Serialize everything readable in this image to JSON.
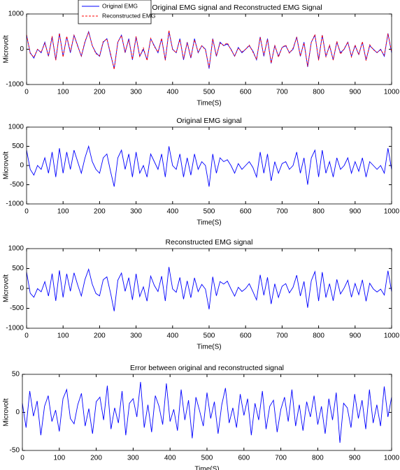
{
  "chart_data": [
    {
      "type": "line",
      "title": "Original EMG signal and Reconstructed EMG Signal",
      "xlabel": "Time(S)",
      "ylabel": "Microvolt",
      "x": [
        0,
        10,
        20,
        30,
        40,
        50,
        60,
        70,
        80,
        90,
        100,
        110,
        120,
        130,
        140,
        150,
        160,
        170,
        180,
        190,
        200,
        210,
        220,
        230,
        240,
        250,
        260,
        270,
        280,
        290,
        300,
        310,
        320,
        330,
        340,
        350,
        360,
        370,
        380,
        390,
        400,
        410,
        420,
        430,
        440,
        450,
        460,
        470,
        480,
        490,
        500,
        510,
        520,
        530,
        540,
        550,
        560,
        570,
        580,
        590,
        600,
        610,
        620,
        630,
        640,
        650,
        660,
        670,
        680,
        690,
        700,
        710,
        720,
        730,
        740,
        750,
        760,
        770,
        780,
        790,
        800,
        810,
        820,
        830,
        840,
        850,
        860,
        870,
        880,
        890,
        900,
        910,
        920,
        930,
        940,
        950,
        960,
        970,
        980,
        990,
        1000
      ],
      "series": [
        {
          "name": "Original EMG",
          "color": "#0000ff",
          "dash": false,
          "values": [
            400,
            -100,
            -250,
            0,
            -100,
            200,
            -200,
            350,
            -300,
            450,
            -200,
            350,
            -100,
            400,
            100,
            -200,
            200,
            500,
            100,
            -100,
            -200,
            200,
            300,
            -150,
            -550,
            200,
            400,
            -100,
            300,
            -300,
            350,
            -200,
            0,
            -300,
            300,
            100,
            -100,
            300,
            -300,
            500,
            0,
            -100,
            300,
            -300,
            200,
            -250,
            300,
            -100,
            100,
            0,
            -550,
            300,
            -200,
            200,
            100,
            150,
            0,
            -200,
            50,
            -100,
            0,
            100,
            -50,
            -300,
            350,
            -200,
            300,
            -400,
            100,
            -200,
            50,
            100,
            -100,
            0,
            350,
            -200,
            200,
            -500,
            200,
            400,
            -300,
            400,
            -200,
            100,
            -300,
            200,
            -100,
            0,
            200,
            -200,
            100,
            -150,
            200,
            -300,
            100,
            0,
            -100,
            0,
            -200,
            450,
            -100
          ]
        },
        {
          "name": "Reconstructed EMG",
          "color": "#ff0000",
          "dash": true,
          "values": [
            412,
            -120,
            -222,
            -5,
            -85,
            170,
            -192,
            372,
            -312,
            453,
            -225,
            368,
            -70,
            392,
            85,
            -190,
            225,
            482,
            105,
            -128,
            -186,
            220,
            290,
            -115,
            -572,
            206,
            386,
            -72,
            270,
            -288,
            368,
            -206,
            40,
            -320,
            310,
            74,
            -78,
            308,
            -316,
            538,
            -12,
            -96,
            276,
            -270,
            190,
            -234,
            266,
            -80,
            102,
            -18,
            -524,
            292,
            -186,
            172,
            110,
            182,
            -14,
            -194,
            30,
            -76,
            -4,
            118,
            -80,
            -288,
            340,
            -172,
            278,
            -392,
            116,
            -226,
            54,
            120,
            -112,
            30,
            332,
            -190,
            176,
            -486,
            194,
            422,
            -316,
            408,
            -228,
            118,
            -310,
            226,
            -140,
            12,
            206,
            -220,
            124,
            -158,
            216,
            -322,
            130,
            -14,
            -90,
            -18,
            -166,
            444,
            -80
          ]
        }
      ],
      "xlim": [
        0,
        1000
      ],
      "ylim": [
        -1000,
        1000
      ],
      "xticks": [
        0,
        100,
        200,
        300,
        400,
        500,
        600,
        700,
        800,
        900,
        1000
      ],
      "yticks": [
        -1000,
        0,
        1000
      ],
      "legend": "upper left"
    },
    {
      "type": "line",
      "title": "Original EMG signal",
      "xlabel": "Time(S)",
      "ylabel": "Microvolt",
      "x": [
        0,
        10,
        20,
        30,
        40,
        50,
        60,
        70,
        80,
        90,
        100,
        110,
        120,
        130,
        140,
        150,
        160,
        170,
        180,
        190,
        200,
        210,
        220,
        230,
        240,
        250,
        260,
        270,
        280,
        290,
        300,
        310,
        320,
        330,
        340,
        350,
        360,
        370,
        380,
        390,
        400,
        410,
        420,
        430,
        440,
        450,
        460,
        470,
        480,
        490,
        500,
        510,
        520,
        530,
        540,
        550,
        560,
        570,
        580,
        590,
        600,
        610,
        620,
        630,
        640,
        650,
        660,
        670,
        680,
        690,
        700,
        710,
        720,
        730,
        740,
        750,
        760,
        770,
        780,
        790,
        800,
        810,
        820,
        830,
        840,
        850,
        860,
        870,
        880,
        890,
        900,
        910,
        920,
        930,
        940,
        950,
        960,
        970,
        980,
        990,
        1000
      ],
      "series": [
        {
          "color": "#0000ff",
          "dash": false,
          "values": [
            400,
            -100,
            -250,
            0,
            -100,
            200,
            -200,
            350,
            -300,
            450,
            -200,
            350,
            -100,
            400,
            100,
            -200,
            200,
            500,
            100,
            -100,
            -200,
            200,
            300,
            -150,
            -550,
            200,
            400,
            -100,
            300,
            -300,
            350,
            -200,
            0,
            -300,
            300,
            100,
            -100,
            300,
            -300,
            500,
            0,
            -100,
            300,
            -300,
            200,
            -250,
            300,
            -100,
            100,
            0,
            -550,
            300,
            -200,
            200,
            100,
            150,
            0,
            -200,
            50,
            -100,
            0,
            100,
            -50,
            -300,
            350,
            -200,
            300,
            -400,
            100,
            -200,
            50,
            100,
            -100,
            0,
            350,
            -200,
            200,
            -500,
            200,
            400,
            -300,
            400,
            -200,
            100,
            -300,
            200,
            -100,
            0,
            200,
            -200,
            100,
            -150,
            200,
            -300,
            100,
            0,
            -100,
            0,
            -200,
            450,
            -100
          ]
        }
      ],
      "xlim": [
        0,
        1000
      ],
      "ylim": [
        -1000,
        1000
      ],
      "xticks": [
        0,
        100,
        200,
        300,
        400,
        500,
        600,
        700,
        800,
        900,
        1000
      ],
      "yticks": [
        -1000,
        -500,
        0,
        500,
        1000
      ]
    },
    {
      "type": "line",
      "title": "Reconstructed EMG signal",
      "xlabel": "Time(S)",
      "ylabel": "Microvolt",
      "x": [
        0,
        10,
        20,
        30,
        40,
        50,
        60,
        70,
        80,
        90,
        100,
        110,
        120,
        130,
        140,
        150,
        160,
        170,
        180,
        190,
        200,
        210,
        220,
        230,
        240,
        250,
        260,
        270,
        280,
        290,
        300,
        310,
        320,
        330,
        340,
        350,
        360,
        370,
        380,
        390,
        400,
        410,
        420,
        430,
        440,
        450,
        460,
        470,
        480,
        490,
        500,
        510,
        520,
        530,
        540,
        550,
        560,
        570,
        580,
        590,
        600,
        610,
        620,
        630,
        640,
        650,
        660,
        670,
        680,
        690,
        700,
        710,
        720,
        730,
        740,
        750,
        760,
        770,
        780,
        790,
        800,
        810,
        820,
        830,
        840,
        850,
        860,
        870,
        880,
        890,
        900,
        910,
        920,
        930,
        940,
        950,
        960,
        970,
        980,
        990,
        1000
      ],
      "series": [
        {
          "color": "#0000ff",
          "dash": false,
          "values": [
            412,
            -120,
            -222,
            -5,
            -85,
            170,
            -192,
            372,
            -312,
            453,
            -225,
            368,
            -70,
            392,
            85,
            -190,
            225,
            482,
            105,
            -128,
            -186,
            220,
            290,
            -115,
            -572,
            206,
            386,
            -72,
            270,
            -288,
            368,
            -206,
            40,
            -320,
            310,
            74,
            -78,
            308,
            -316,
            538,
            -12,
            -96,
            276,
            -270,
            190,
            -234,
            266,
            -80,
            102,
            -18,
            -524,
            292,
            -186,
            172,
            110,
            182,
            -14,
            -194,
            30,
            -76,
            -4,
            118,
            -80,
            -288,
            340,
            -172,
            278,
            -392,
            116,
            -226,
            54,
            120,
            -112,
            30,
            332,
            -190,
            176,
            -486,
            194,
            422,
            -316,
            408,
            -228,
            118,
            -310,
            226,
            -140,
            12,
            206,
            -220,
            124,
            -158,
            216,
            -322,
            130,
            -14,
            -90,
            -18,
            -166,
            444,
            -80
          ]
        }
      ],
      "xlim": [
        0,
        1000
      ],
      "ylim": [
        -1000,
        1000
      ],
      "xticks": [
        0,
        100,
        200,
        300,
        400,
        500,
        600,
        700,
        800,
        900,
        1000
      ],
      "yticks": [
        -1000,
        -500,
        0,
        500,
        1000
      ]
    },
    {
      "type": "line",
      "title": "Error between original and reconstructed signal",
      "xlabel": "Time(S)",
      "ylabel": "Microvolt",
      "x": [
        0,
        10,
        20,
        30,
        40,
        50,
        60,
        70,
        80,
        90,
        100,
        110,
        120,
        130,
        140,
        150,
        160,
        170,
        180,
        190,
        200,
        210,
        220,
        230,
        240,
        250,
        260,
        270,
        280,
        290,
        300,
        310,
        320,
        330,
        340,
        350,
        360,
        370,
        380,
        390,
        400,
        410,
        420,
        430,
        440,
        450,
        460,
        470,
        480,
        490,
        500,
        510,
        520,
        530,
        540,
        550,
        560,
        570,
        580,
        590,
        600,
        610,
        620,
        630,
        640,
        650,
        660,
        670,
        680,
        690,
        700,
        710,
        720,
        730,
        740,
        750,
        760,
        770,
        780,
        790,
        800,
        810,
        820,
        830,
        840,
        850,
        860,
        870,
        880,
        890,
        900,
        910,
        920,
        930,
        940,
        950,
        960,
        970,
        980,
        990,
        1000
      ],
      "series": [
        {
          "color": "#0000ff",
          "dash": false,
          "values": [
            12,
            -20,
            28,
            -5,
            15,
            -30,
            8,
            22,
            -12,
            3,
            -25,
            18,
            30,
            -8,
            -15,
            10,
            25,
            -18,
            5,
            -28,
            14,
            20,
            -10,
            35,
            -22,
            6,
            -14,
            28,
            -30,
            12,
            18,
            -6,
            40,
            -20,
            10,
            -26,
            22,
            8,
            -16,
            38,
            -12,
            4,
            -24,
            30,
            -10,
            16,
            -34,
            20,
            2,
            -18,
            26,
            -8,
            14,
            -28,
            10,
            32,
            -14,
            6,
            -20,
            24,
            -4,
            18,
            -30,
            12,
            -10,
            28,
            -22,
            8,
            16,
            -26,
            4,
            20,
            -12,
            30,
            -18,
            10,
            -24,
            14,
            -6,
            22,
            -16,
            8,
            -28,
            18,
            -10,
            26,
            -40,
            12,
            6,
            -20,
            24,
            -8,
            16,
            -22,
            30,
            -14,
            10,
            -18,
            34,
            -6,
            20
          ]
        }
      ],
      "xlim": [
        0,
        1000
      ],
      "ylim": [
        -50,
        50
      ],
      "xticks": [
        0,
        100,
        200,
        300,
        400,
        500,
        600,
        700,
        800,
        900,
        1000
      ],
      "yticks": [
        -50,
        0,
        50
      ]
    }
  ]
}
